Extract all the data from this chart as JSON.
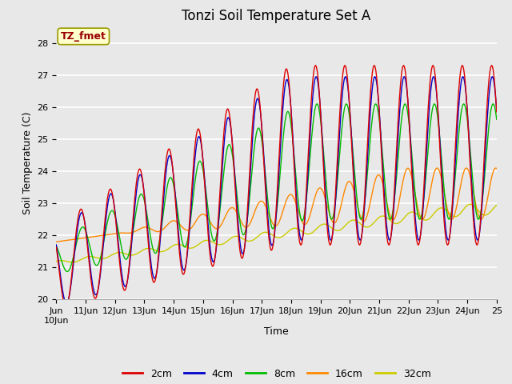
{
  "title": "Tonzi Soil Temperature Set A",
  "xlabel": "Time",
  "ylabel": "Soil Temperature (C)",
  "annotation": "TZ_fmet",
  "xlim_start": 0,
  "xlim_end": 15,
  "ylim": [
    20.0,
    28.5
  ],
  "yticks": [
    20.0,
    21.0,
    22.0,
    23.0,
    24.0,
    25.0,
    26.0,
    27.0,
    28.0
  ],
  "xtick_positions": [
    0,
    1,
    2,
    3,
    4,
    5,
    6,
    7,
    8,
    9,
    10,
    11,
    12,
    13,
    14,
    15
  ],
  "xtick_labels": [
    "Jun\n10Jun",
    "11Jun",
    "12Jun",
    "13Jun",
    "14Jun",
    "15Jun",
    "16Jun",
    "17Jun",
    "18Jun",
    "19Jun",
    "20Jun",
    "21Jun",
    "22Jun",
    "23Jun",
    "24Jun",
    "25"
  ],
  "series_colors": [
    "#dd0000",
    "#0000cc",
    "#00bb00",
    "#ff8800",
    "#cccc00"
  ],
  "series_labels": [
    "2cm",
    "4cm",
    "8cm",
    "16cm",
    "32cm"
  ],
  "bg_color": "#e8e8e8",
  "plot_bg_color": "#e8e8e8",
  "grid_color": "#ffffff",
  "title_fontsize": 12,
  "label_fontsize": 9,
  "tick_fontsize": 8,
  "legend_fontsize": 9
}
